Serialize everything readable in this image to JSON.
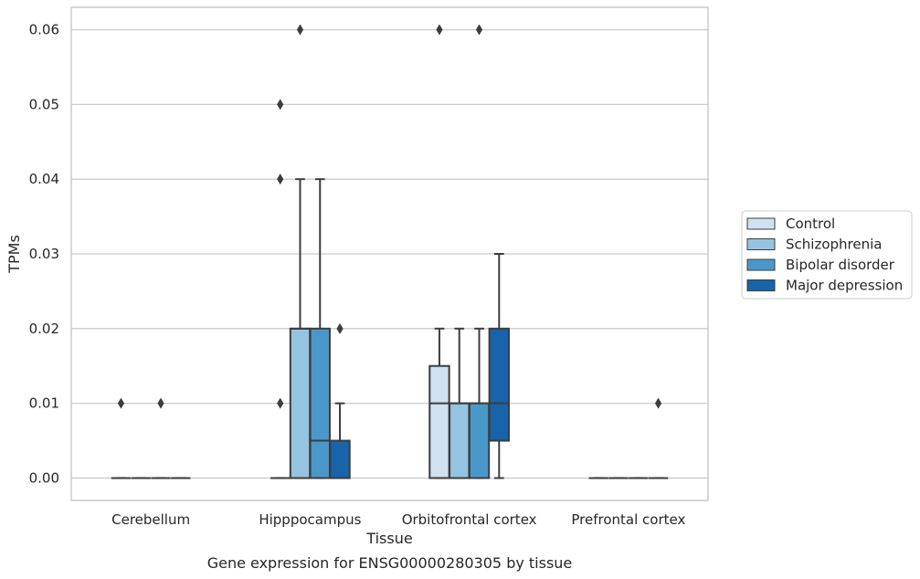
{
  "caption": "Gene expression for ENSG00000280305 by tissue",
  "chart_data": {
    "type": "boxplot",
    "xlabel": "Tissue",
    "ylabel": "TPMs",
    "ylim": [
      -0.003,
      0.063
    ],
    "yticks": [
      0.0,
      0.01,
      0.02,
      0.03,
      0.04,
      0.05,
      0.06
    ],
    "ytick_labels": [
      "0.00",
      "0.01",
      "0.02",
      "0.03",
      "0.04",
      "0.05",
      "0.06"
    ],
    "grid": "horizontal",
    "legend_position": "right",
    "categories": [
      "Cerebellum",
      "Hipppocampus",
      "Orbitofrontal cortex",
      "Prefrontal cortex"
    ],
    "series": [
      {
        "name": "Control",
        "color": "#d0e1f2",
        "boxes": [
          {
            "q1": 0,
            "median": 0,
            "q3": 0,
            "whislo": 0,
            "whishi": 0,
            "fliers": [
              0.01
            ]
          },
          {
            "q1": 0,
            "median": 0,
            "q3": 0,
            "whislo": 0,
            "whishi": 0,
            "fliers": [
              0.01,
              0.04,
              0.05
            ]
          },
          {
            "q1": 0,
            "median": 0.01,
            "q3": 0.015,
            "whislo": 0,
            "whishi": 0.02,
            "fliers": [
              0.06
            ]
          },
          {
            "q1": 0,
            "median": 0,
            "q3": 0,
            "whislo": 0,
            "whishi": 0,
            "fliers": []
          }
        ]
      },
      {
        "name": "Schizophrenia",
        "color": "#94c4df",
        "boxes": [
          {
            "q1": 0,
            "median": 0,
            "q3": 0,
            "whislo": 0,
            "whishi": 0,
            "fliers": []
          },
          {
            "q1": 0,
            "median": 0.02,
            "q3": 0.02,
            "whislo": 0,
            "whishi": 0.04,
            "fliers": [
              0.06
            ]
          },
          {
            "q1": 0,
            "median": 0.01,
            "q3": 0.01,
            "whislo": 0,
            "whishi": 0.02,
            "fliers": []
          },
          {
            "q1": 0,
            "median": 0,
            "q3": 0,
            "whislo": 0,
            "whishi": 0,
            "fliers": []
          }
        ]
      },
      {
        "name": "Bipolar disorder",
        "color": "#4a98c9",
        "boxes": [
          {
            "q1": 0,
            "median": 0,
            "q3": 0,
            "whislo": 0,
            "whishi": 0,
            "fliers": [
              0.01
            ]
          },
          {
            "q1": 0,
            "median": 0.005,
            "q3": 0.02,
            "whislo": 0,
            "whishi": 0.04,
            "fliers": []
          },
          {
            "q1": 0,
            "median": 0.01,
            "q3": 0.01,
            "whislo": 0,
            "whishi": 0.02,
            "fliers": [
              0.06
            ]
          },
          {
            "q1": 0,
            "median": 0,
            "q3": 0,
            "whislo": 0,
            "whishi": 0,
            "fliers": []
          }
        ]
      },
      {
        "name": "Major depression",
        "color": "#1764ab",
        "boxes": [
          {
            "q1": 0,
            "median": 0,
            "q3": 0,
            "whislo": 0,
            "whishi": 0,
            "fliers": []
          },
          {
            "q1": 0,
            "median": 0,
            "q3": 0.005,
            "whislo": 0,
            "whishi": 0.01,
            "fliers": [
              0.02
            ]
          },
          {
            "q1": 0.005,
            "median": 0.01,
            "q3": 0.02,
            "whislo": 0,
            "whishi": 0.03,
            "fliers": []
          },
          {
            "q1": 0,
            "median": 0,
            "q3": 0,
            "whislo": 0,
            "whishi": 0,
            "fliers": [
              0.01
            ]
          }
        ]
      }
    ]
  }
}
